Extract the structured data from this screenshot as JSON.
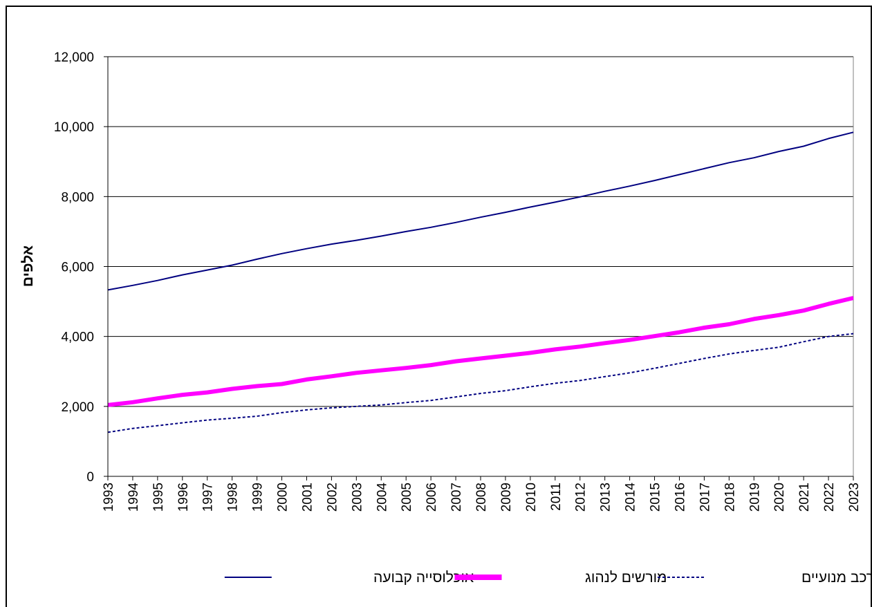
{
  "chart_data": {
    "type": "line",
    "title": "",
    "xlabel": "",
    "ylabel": "אלפים",
    "ylim": [
      0,
      12000
    ],
    "yticks": [
      "0",
      "2,000",
      "4,000",
      "6,000",
      "8,000",
      "10,000",
      "12,000"
    ],
    "grid": true,
    "legend_position": "bottom",
    "categories": [
      "1993",
      "1994",
      "1995",
      "1996",
      "1997",
      "1998",
      "1999",
      "2000",
      "2001",
      "2002",
      "2003",
      "2004",
      "2005",
      "2006",
      "2007",
      "2008",
      "2009",
      "2010",
      "2011",
      "2012",
      "2013",
      "2014",
      "2015",
      "2016",
      "2017",
      "2018",
      "2019",
      "2020",
      "2021",
      "2022",
      "2023"
    ],
    "series": [
      {
        "name": "אוכלוסייה קבועה",
        "color": "#000080",
        "style": "solid",
        "values": [
          5330,
          5460,
          5600,
          5760,
          5900,
          6040,
          6210,
          6370,
          6510,
          6640,
          6750,
          6870,
          7000,
          7120,
          7260,
          7410,
          7550,
          7700,
          7840,
          7990,
          8150,
          8300,
          8460,
          8630,
          8800,
          8970,
          9110,
          9290,
          9440,
          9660,
          9840
        ]
      },
      {
        "name": "מורשים לנהוג",
        "color": "#ff00ff",
        "style": "thick",
        "values": [
          2040,
          2120,
          2230,
          2330,
          2400,
          2500,
          2580,
          2640,
          2770,
          2860,
          2960,
          3030,
          3100,
          3180,
          3290,
          3370,
          3450,
          3530,
          3630,
          3710,
          3810,
          3900,
          4010,
          4120,
          4250,
          4350,
          4500,
          4610,
          4740,
          4930,
          5100
        ]
      },
      {
        "name": "כלי רכב מנועיים",
        "color": "#000080",
        "style": "dashed",
        "values": [
          1260,
          1370,
          1450,
          1530,
          1610,
          1660,
          1720,
          1820,
          1900,
          1960,
          2000,
          2040,
          2110,
          2170,
          2270,
          2370,
          2450,
          2560,
          2660,
          2740,
          2850,
          2960,
          3090,
          3230,
          3370,
          3500,
          3600,
          3690,
          3850,
          4000,
          4080
        ]
      }
    ]
  }
}
